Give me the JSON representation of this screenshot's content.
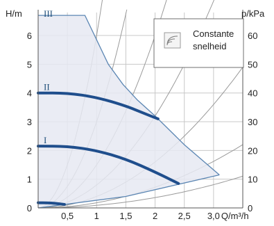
{
  "chart_data": {
    "type": "line",
    "y_axis_left": {
      "label": "H/m",
      "ticks": [
        0,
        1,
        2,
        3,
        4,
        5,
        6
      ],
      "range": [
        0,
        6.8
      ]
    },
    "y_axis_right": {
      "label": "p/kPa",
      "ticks": [
        0,
        10,
        20,
        30,
        40,
        50,
        60
      ]
    },
    "x_axis": {
      "label": "Q/m³/h",
      "range": [
        0,
        3.5
      ],
      "ticks": [
        0.5,
        1,
        1.5,
        2,
        2.5,
        3
      ],
      "tick_labels": [
        "0,5",
        "1",
        "1,5",
        "2",
        "2,5",
        "3,0"
      ]
    },
    "legend": {
      "lines": [
        "Constante",
        "snelheid"
      ],
      "placement": "top-right"
    },
    "series": [
      {
        "name": "III",
        "x": [
          0,
          0.8,
          1.2,
          1.45,
          1.7,
          2.0,
          2.5,
          3.1
        ],
        "y": [
          6.7,
          6.7,
          5.0,
          4.3,
          3.75,
          3.2,
          2.2,
          1.15
        ]
      },
      {
        "name": "II",
        "x": [
          0,
          0.5,
          1.0,
          1.5,
          1.8,
          2.05
        ],
        "y": [
          4.0,
          4.0,
          3.85,
          3.55,
          3.3,
          3.1
        ]
      },
      {
        "name": "I",
        "x": [
          0,
          0.5,
          1.0,
          1.5,
          2.0,
          2.4
        ],
        "y": [
          2.15,
          2.15,
          2.0,
          1.7,
          1.25,
          0.85
        ]
      },
      {
        "name": "",
        "x": [
          0,
          0.15,
          0.3,
          0.45
        ],
        "y": [
          0.18,
          0.18,
          0.16,
          0.12
        ]
      }
    ],
    "lower_boundary": {
      "x": [
        0,
        1.5,
        3.1
      ],
      "y": [
        0,
        0.4,
        1.15
      ]
    },
    "system_curves_k": [
      6.0,
      3.0,
      1.5,
      0.8,
      0.4,
      0.18,
      0.09
    ],
    "grid": true
  }
}
